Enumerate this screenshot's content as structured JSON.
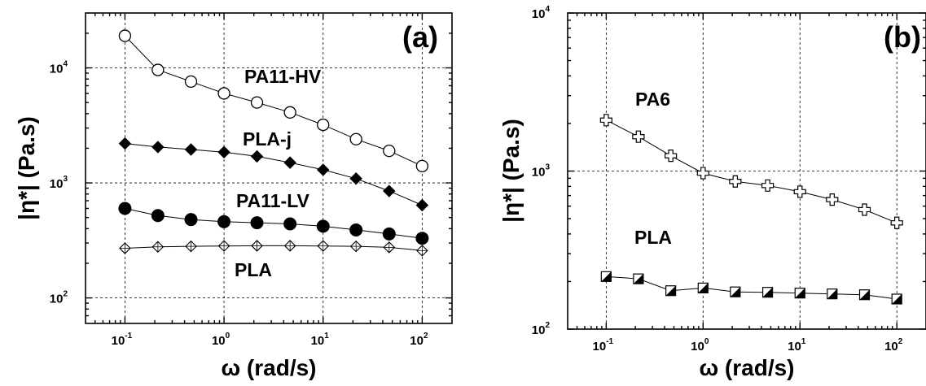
{
  "chart_data": [
    {
      "type": "line",
      "panel_label": "(a)",
      "xlabel": "ω (rad/s)",
      "ylabel": "|η*| (Pa.s)",
      "xscale": "log",
      "yscale": "log",
      "xlim": [
        0.04,
        200
      ],
      "ylim": [
        60,
        30000
      ],
      "grid": true,
      "x_ticks": [
        {
          "base": "10",
          "exp": "-1",
          "value": 0.1
        },
        {
          "base": "10",
          "exp": "0",
          "value": 1
        },
        {
          "base": "10",
          "exp": "1",
          "value": 10
        },
        {
          "base": "10",
          "exp": "2",
          "value": 100
        }
      ],
      "y_ticks": [
        {
          "base": "10",
          "exp": "2",
          "value": 100
        },
        {
          "base": "10",
          "exp": "3",
          "value": 1000
        },
        {
          "base": "10",
          "exp": "4",
          "value": 10000
        }
      ],
      "x": [
        0.1,
        0.215,
        0.464,
        1,
        2.15,
        4.64,
        10,
        21.5,
        46.4,
        100
      ],
      "series": [
        {
          "name": "PA11-HV",
          "marker": "circle-open",
          "values": [
            19000,
            9600,
            7600,
            6000,
            5000,
            4100,
            3200,
            2400,
            1900,
            1400
          ]
        },
        {
          "name": "PLA-j",
          "marker": "diamond-filled",
          "values": [
            2200,
            2050,
            1950,
            1850,
            1700,
            1500,
            1300,
            1090,
            850,
            640
          ]
        },
        {
          "name": "PA11-LV",
          "marker": "circle-filled",
          "values": [
            600,
            520,
            480,
            460,
            450,
            440,
            420,
            390,
            360,
            330
          ]
        },
        {
          "name": "PLA",
          "marker": "diamond-crossed",
          "values": [
            270,
            278,
            281,
            283,
            284,
            284,
            283,
            281,
            275,
            258
          ]
        }
      ]
    },
    {
      "type": "line",
      "panel_label": "(b)",
      "xlabel": "ω (rad/s)",
      "ylabel": "|η*| (Pa.s)",
      "xscale": "log",
      "yscale": "log",
      "xlim": [
        0.04,
        200
      ],
      "ylim": [
        100,
        10000
      ],
      "grid": true,
      "x_ticks": [
        {
          "base": "10",
          "exp": "-1",
          "value": 0.1
        },
        {
          "base": "10",
          "exp": "0",
          "value": 1
        },
        {
          "base": "10",
          "exp": "1",
          "value": 10
        },
        {
          "base": "10",
          "exp": "2",
          "value": 100
        }
      ],
      "y_ticks": [
        {
          "base": "10",
          "exp": "2",
          "value": 100
        },
        {
          "base": "10",
          "exp": "3",
          "value": 1000
        },
        {
          "base": "10",
          "exp": "4",
          "value": 10000
        }
      ],
      "x": [
        0.1,
        0.215,
        0.464,
        1,
        2.15,
        4.64,
        10,
        21.5,
        46.4,
        100
      ],
      "series": [
        {
          "name": "PA6",
          "marker": "cross-open",
          "values": [
            2100,
            1650,
            1250,
            970,
            860,
            810,
            740,
            660,
            570,
            470
          ]
        },
        {
          "name": "PLA",
          "marker": "square-half",
          "values": [
            215,
            208,
            175,
            182,
            172,
            171,
            169,
            167,
            165,
            155
          ]
        }
      ]
    }
  ]
}
